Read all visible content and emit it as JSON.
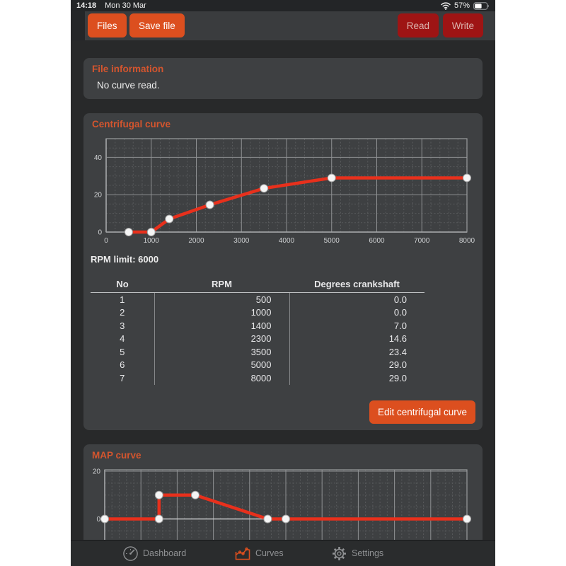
{
  "status_bar": {
    "time": "14:18",
    "date": "Mon 30 Mar",
    "battery_percent": "57%",
    "icons": [
      "wifi-icon",
      "battery-icon"
    ]
  },
  "toolbar": {
    "files_label": "Files",
    "save_file_label": "Save file",
    "read_label": "Read",
    "write_label": "Write"
  },
  "file_info": {
    "title": "File information",
    "message": "No curve read."
  },
  "centrifugal": {
    "title": "Centrifugal curve",
    "rpm_limit_label": "RPM limit: 6000",
    "table": {
      "headers": [
        "No",
        "RPM",
        "Degrees crankshaft"
      ],
      "rows": [
        [
          "1",
          "500",
          "0.0"
        ],
        [
          "2",
          "1000",
          "0.0"
        ],
        [
          "3",
          "1400",
          "7.0"
        ],
        [
          "4",
          "2300",
          "14.6"
        ],
        [
          "5",
          "3500",
          "23.4"
        ],
        [
          "6",
          "5000",
          "29.0"
        ],
        [
          "7",
          "8000",
          "29.0"
        ]
      ]
    },
    "edit_button_label": "Edit centrifugal curve"
  },
  "map": {
    "title": "MAP curve"
  },
  "tab_bar": {
    "items": [
      {
        "label": "Dashboard",
        "icon": "gauge-icon",
        "active": false
      },
      {
        "label": "Curves",
        "icon": "curves-icon",
        "active": true
      },
      {
        "label": "Settings",
        "icon": "gear-icon",
        "active": false
      }
    ]
  },
  "colors": {
    "accent": "#DC4F1F",
    "section_header_orange": "#D4552E",
    "danger_red": "#9E1414",
    "danger_text": "#DCB4AE",
    "curve_line_red": "#E8301C",
    "card_background": "#3E4042",
    "page_background": "#28292A"
  },
  "chart_data": [
    {
      "id": "centrifugal",
      "type": "line",
      "title": "Centrifugal curve",
      "x": [
        500,
        1000,
        1400,
        2300,
        3500,
        5000,
        8000
      ],
      "y": [
        0.0,
        0.0,
        7.0,
        14.6,
        23.4,
        29.0,
        29.0
      ],
      "xlim": [
        0,
        8000
      ],
      "ylim": [
        0,
        50
      ],
      "x_major": 1000,
      "x_minor": 200,
      "y_major": 20,
      "y_minor": 5,
      "x_ticks": [
        0,
        1000,
        2000,
        3000,
        4000,
        5000,
        6000,
        7000,
        8000
      ],
      "y_ticks": [
        0,
        20,
        40
      ],
      "xlabel": "",
      "ylabel": "",
      "grid": true,
      "legend": false
    },
    {
      "id": "map",
      "type": "line",
      "title": "MAP curve",
      "x": [
        0,
        15,
        15,
        25,
        45,
        50,
        100
      ],
      "y": [
        0,
        0,
        10,
        10,
        0,
        0,
        0
      ],
      "xlim": [
        0,
        100
      ],
      "ylim": [
        -12,
        20.6
      ],
      "x_major": 10,
      "x_minor": 2,
      "y_major": 20,
      "y_minor": 5,
      "x_ticks": [],
      "y_ticks": [
        0,
        20
      ],
      "xlabel": "",
      "ylabel": "",
      "grid": true,
      "legend": false,
      "note": "bottom of chart clipped by tab bar"
    }
  ]
}
